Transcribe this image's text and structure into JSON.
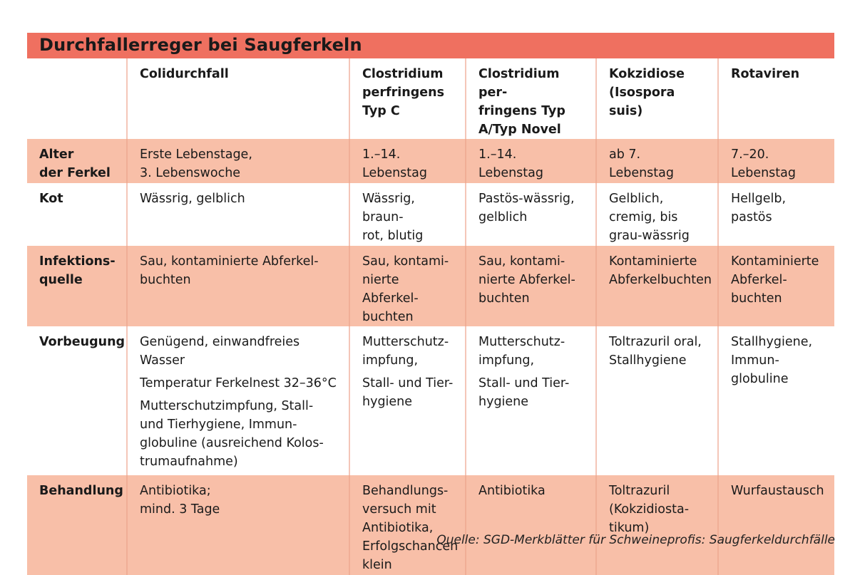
{
  "title": "Durchfallerreger bei Saugferkeln",
  "colors": {
    "title_bar": "#ef7060",
    "row_highlight": "#f8bfa8"
  },
  "columns": [
    "",
    "Colidurchfall",
    "Clostridium\nperfringens\nTyp C",
    "Clostridium per-\nfringens Typ\nA/Typ Novel",
    "Kokzidiose\n(Isospora suis)",
    "Rotaviren"
  ],
  "rows": [
    {
      "label": "Alter\nder Ferkel",
      "pink": true,
      "cells": [
        [
          "Erste Lebenstage,\n3. Lebenswoche"
        ],
        [
          "1.–14.\nLebenstag"
        ],
        [
          "1.–14.\nLebenstag"
        ],
        [
          "ab 7.\nLebenstag"
        ],
        [
          "7.–20.\nLebenstag"
        ]
      ]
    },
    {
      "label": "Kot",
      "pink": false,
      "cells": [
        [
          "Wässrig, gelblich"
        ],
        [
          "Wässrig, braun-\nrot, blutig"
        ],
        [
          "Pastös-wässrig,\ngelblich"
        ],
        [
          "Gelblich,\ncremig, bis\ngrau-wässrig"
        ],
        [
          "Hellgelb,\npastös"
        ]
      ]
    },
    {
      "label": "Infektions-\nquelle",
      "pink": true,
      "cells": [
        [
          "Sau, kontaminierte Abferkel-\nbuchten"
        ],
        [
          "Sau, kontami-\nnierte Abferkel-\nbuchten"
        ],
        [
          "Sau, kontami-\nnierte Abferkel-\nbuchten"
        ],
        [
          "Kontaminierte\nAbferkelbuchten"
        ],
        [
          "Kontaminierte\nAbferkel-\nbuchten"
        ]
      ]
    },
    {
      "label": "Vorbeugung",
      "pink": false,
      "cells": [
        [
          "Genügend, einwandfreies Wasser",
          "Temperatur Ferkelnest 32–36°C",
          "Mutterschutzimpfung, Stall-\nund Tierhygiene, Immun-\nglobuline (ausreichend Kolos-\ntrumaufnahme)"
        ],
        [
          "Mutterschutz-\nimpfung,",
          "Stall- und Tier-\nhygiene"
        ],
        [
          "Mutterschutz-\nimpfung,",
          "Stall- und Tier-\nhygiene"
        ],
        [
          "Toltrazuril oral,\nStallhygiene"
        ],
        [
          "Stallhygiene,\nImmun-\nglobuline"
        ]
      ]
    },
    {
      "label": "Behandlung",
      "pink": true,
      "cells": [
        [
          "Antibiotika;\nmind. 3 Tage"
        ],
        [
          "Behandlungs-\nversuch mit\nAntibiotika,\nErfolgschancen\nklein"
        ],
        [
          "Antibiotika"
        ],
        [
          "Toltrazuril\n(Kokzidiosta-\ntikum)"
        ],
        [
          "Wurfaustausch"
        ]
      ]
    }
  ],
  "source": "Quelle: SGD-Merkblätter für Schweineprofis: Saugferkeldurchfälle"
}
